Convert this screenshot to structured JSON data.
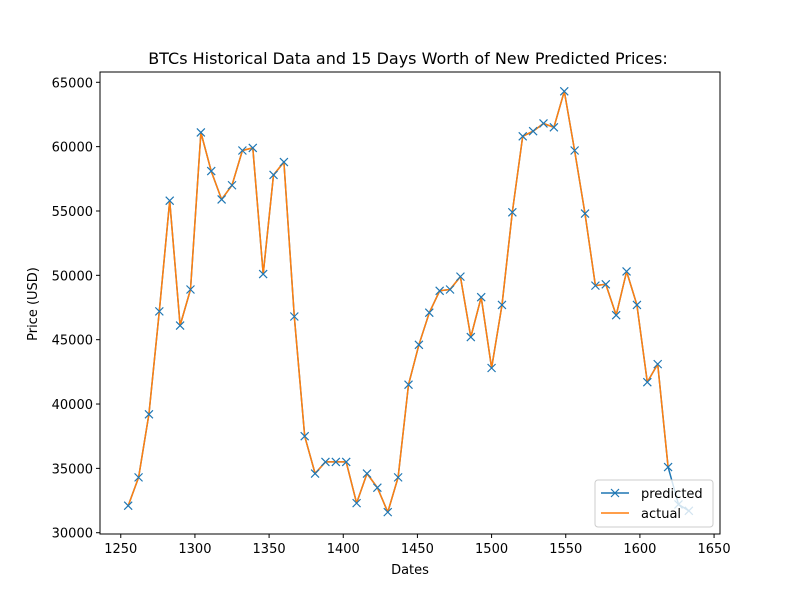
{
  "chart_data": {
    "type": "line",
    "title": "BTCs Historical Data and 15 Days Worth of New Predicted Prices:",
    "xlabel": "Dates",
    "ylabel": "Price (USD)",
    "xlim": [
      1236,
      1654
    ],
    "ylim": [
      29900,
      65800
    ],
    "xticks": [
      1250,
      1300,
      1350,
      1400,
      1450,
      1500,
      1550,
      1600,
      1650
    ],
    "yticks": [
      30000,
      35000,
      40000,
      45000,
      50000,
      55000,
      60000,
      65000
    ],
    "grid": false,
    "legend_position": "lower-right",
    "series": [
      {
        "name": "predicted",
        "color": "#1f77b4",
        "marker": "x",
        "x": [
          1255,
          1262,
          1269,
          1276,
          1283,
          1290,
          1297,
          1304,
          1311,
          1318,
          1325,
          1332,
          1339,
          1346,
          1353,
          1360,
          1367,
          1374,
          1381,
          1388,
          1395,
          1402,
          1409,
          1416,
          1423,
          1430,
          1437,
          1444,
          1451,
          1458,
          1465,
          1472,
          1479,
          1486,
          1493,
          1500,
          1507,
          1514,
          1521,
          1528,
          1535,
          1542,
          1549,
          1556,
          1563,
          1570,
          1577,
          1584,
          1591,
          1598,
          1605,
          1612,
          1619,
          1626,
          1633
        ],
        "y": [
          32100,
          34300,
          39200,
          47200,
          55800,
          46100,
          48900,
          61100,
          58100,
          55900,
          57000,
          59700,
          59900,
          50100,
          57800,
          58800,
          46800,
          37500,
          34600,
          35500,
          35500,
          35500,
          32300,
          34600,
          33500,
          31600,
          34300,
          41500,
          44600,
          47100,
          48800,
          48900,
          49900,
          45200,
          48300,
          42800,
          47700,
          54900,
          60800,
          61200,
          61800,
          61500,
          64300,
          59700,
          54800,
          49200,
          49300,
          46900,
          50300,
          47700,
          41700,
          43100,
          35100,
          32200,
          31700
        ]
      },
      {
        "name": "actual",
        "color": "#ff7f0e",
        "x": [
          1255,
          1262,
          1269,
          1276,
          1283,
          1290,
          1297,
          1304,
          1311,
          1318,
          1325,
          1332,
          1339,
          1346,
          1353,
          1360,
          1367,
          1374,
          1381,
          1388,
          1395,
          1402,
          1409,
          1416,
          1423,
          1430,
          1437,
          1444,
          1451,
          1458,
          1465,
          1472,
          1479,
          1486,
          1493,
          1500,
          1507,
          1514,
          1521,
          1528,
          1535,
          1542,
          1549,
          1556,
          1563,
          1570,
          1577,
          1584,
          1591,
          1598,
          1605,
          1612,
          1619
        ],
        "y": [
          32100,
          34300,
          39200,
          47200,
          55800,
          46100,
          48900,
          61100,
          58100,
          55900,
          57000,
          59700,
          59900,
          50100,
          57800,
          58800,
          46800,
          37500,
          34600,
          35500,
          35500,
          35500,
          32300,
          34600,
          33500,
          31600,
          34300,
          41500,
          44600,
          47100,
          48800,
          48900,
          49900,
          45200,
          48300,
          42800,
          47700,
          54900,
          60800,
          61200,
          61800,
          61500,
          64300,
          59700,
          54800,
          49200,
          49300,
          46900,
          50300,
          47700,
          41700,
          43100,
          35100
        ]
      }
    ]
  }
}
